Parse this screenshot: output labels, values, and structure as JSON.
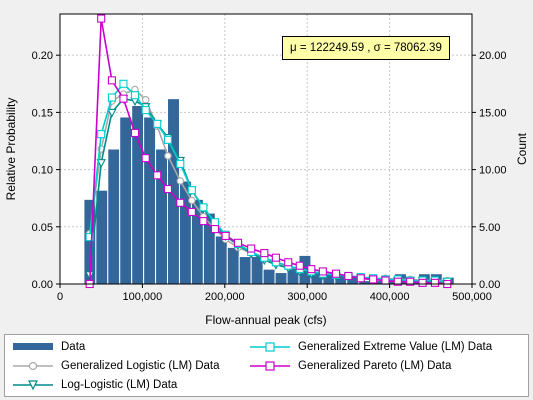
{
  "chart_data": {
    "type": "bar",
    "xlabel": "Flow-annual peak (cfs)",
    "ylabel_left": "Relative Probability",
    "ylabel_right": "Count",
    "annotation": "μ = 122249.59 , σ = 78062.39",
    "xlim": [
      0,
      500000
    ],
    "ylim_left": [
      0,
      0.236
    ],
    "ylim_right": [
      0,
      23.6
    ],
    "x_ticks": [
      0,
      100000,
      200000,
      300000,
      400000,
      500000
    ],
    "x_tick_labels": [
      "0",
      "100,000",
      "200,000",
      "300,000",
      "400,000",
      "500,000"
    ],
    "y_left_ticks": [
      0,
      0.05,
      0.1,
      0.15,
      0.2
    ],
    "y_left_tick_labels": [
      "0.00",
      "0.05",
      "0.10",
      "0.15",
      "0.20"
    ],
    "y_right_ticks": [
      0,
      5,
      10,
      15,
      20
    ],
    "y_right_tick_labels": [
      "0.00",
      "5.00",
      "10.00",
      "15.00",
      "20.00"
    ],
    "grid": true,
    "legend_position": "bottom",
    "histogram": {
      "name": "Data",
      "color": "#336699",
      "bin_width": 14500,
      "bin_starts": [
        29000,
        43500,
        58000,
        72500,
        87000,
        101500,
        116000,
        130500,
        145000,
        159500,
        174000,
        188500,
        203000,
        217500,
        232000,
        246500,
        261000,
        275500,
        290000,
        304500,
        319000,
        333500,
        348000,
        362500,
        377000,
        391500,
        406000,
        420500,
        435000,
        449500,
        464000
      ],
      "counts": [
        7.4,
        8.2,
        11.8,
        14.6,
        15.6,
        14.6,
        11.8,
        16.2,
        9.0,
        7.4,
        6.2,
        4.2,
        3.2,
        2.4,
        2.4,
        1.3,
        1.0,
        1.4,
        2.5,
        1.0,
        0.9,
        0.7,
        0.6,
        0.3,
        0.3,
        0.3,
        0.9,
        0.3,
        0.9,
        0.9,
        0.6
      ]
    },
    "series": [
      {
        "name": "Generalized Logistic (LM) Data",
        "color": "#a8a8a8",
        "marker": "circle",
        "x": [
          36000,
          50000,
          63000,
          77000,
          91000,
          104000,
          118000,
          131000,
          146000,
          160000,
          174000,
          188000,
          201000,
          216000,
          232000,
          248000,
          262000,
          277000,
          291000,
          305000,
          319000,
          335000,
          350000,
          365000,
          380000,
          395000,
          410000,
          425000,
          440000,
          455000,
          470000
        ],
        "y": [
          0.044,
          0.118,
          0.16,
          0.166,
          0.17,
          0.161,
          0.138,
          0.112,
          0.09,
          0.073,
          0.059,
          0.048,
          0.039,
          0.032,
          0.027,
          0.022,
          0.018,
          0.015,
          0.013,
          0.011,
          0.009,
          0.008,
          0.007,
          0.006,
          0.005,
          0.005,
          0.004,
          0.004,
          0.003,
          0.003,
          0.003
        ]
      },
      {
        "name": "Log-Logistic (LM) Data",
        "color": "#008b8b",
        "marker": "triangle-down",
        "x": [
          36000,
          50000,
          63000,
          77000,
          91000,
          104000,
          118000,
          131000,
          146000,
          160000,
          174000,
          188000,
          201000,
          216000,
          232000,
          248000,
          262000,
          277000,
          291000,
          305000,
          319000,
          335000,
          350000,
          365000,
          380000,
          395000,
          410000,
          425000,
          440000,
          455000,
          470000
        ],
        "y": [
          0.008,
          0.106,
          0.15,
          0.162,
          0.16,
          0.155,
          0.14,
          0.128,
          0.108,
          0.082,
          0.066,
          0.052,
          0.042,
          0.034,
          0.027,
          0.021,
          0.017,
          0.014,
          0.011,
          0.009,
          0.008,
          0.007,
          0.006,
          0.005,
          0.004,
          0.004,
          0.003,
          0.003,
          0.003,
          0.002,
          0.002
        ]
      },
      {
        "name": "Generalized Extreme Value (LM) Data",
        "color": "#00cccc",
        "marker": "square",
        "x": [
          36000,
          50000,
          63000,
          77000,
          91000,
          104000,
          118000,
          131000,
          146000,
          160000,
          174000,
          188000,
          201000,
          216000,
          232000,
          248000,
          262000,
          277000,
          291000,
          305000,
          319000,
          335000,
          350000,
          365000,
          380000,
          395000,
          410000,
          425000,
          440000,
          455000,
          470000
        ],
        "y": [
          0.041,
          0.131,
          0.163,
          0.175,
          0.165,
          0.152,
          0.14,
          0.126,
          0.105,
          0.082,
          0.067,
          0.054,
          0.043,
          0.035,
          0.028,
          0.023,
          0.019,
          0.016,
          0.013,
          0.011,
          0.009,
          0.008,
          0.007,
          0.006,
          0.005,
          0.004,
          0.004,
          0.003,
          0.003,
          0.003,
          0.002
        ]
      },
      {
        "name": "Generalized Pareto (LM) Data",
        "color": "#cc00cc",
        "marker": "square",
        "x": [
          36000,
          50000,
          63000,
          77000,
          91000,
          104000,
          118000,
          131000,
          146000,
          160000,
          174000,
          188000,
          201000,
          216000,
          232000,
          248000,
          262000,
          277000,
          291000,
          305000,
          319000,
          335000,
          350000,
          365000,
          380000,
          395000,
          410000,
          425000,
          440000,
          455000,
          470000
        ],
        "y": [
          0.0,
          0.232,
          0.178,
          0.162,
          0.132,
          0.11,
          0.095,
          0.083,
          0.071,
          0.063,
          0.055,
          0.048,
          0.042,
          0.036,
          0.031,
          0.027,
          0.023,
          0.019,
          0.016,
          0.013,
          0.011,
          0.009,
          0.007,
          0.005,
          0.004,
          0.003,
          0.002,
          0.002,
          0.001,
          0.001,
          0.0
        ]
      }
    ]
  },
  "legend": {
    "items": [
      {
        "label": "Data"
      },
      {
        "label": "Generalized Logistic (LM) Data"
      },
      {
        "label": "Log-Logistic (LM) Data"
      },
      {
        "label": "Generalized Extreme Value (LM) Data"
      },
      {
        "label": "Generalized Pareto (LM) Data"
      }
    ]
  }
}
